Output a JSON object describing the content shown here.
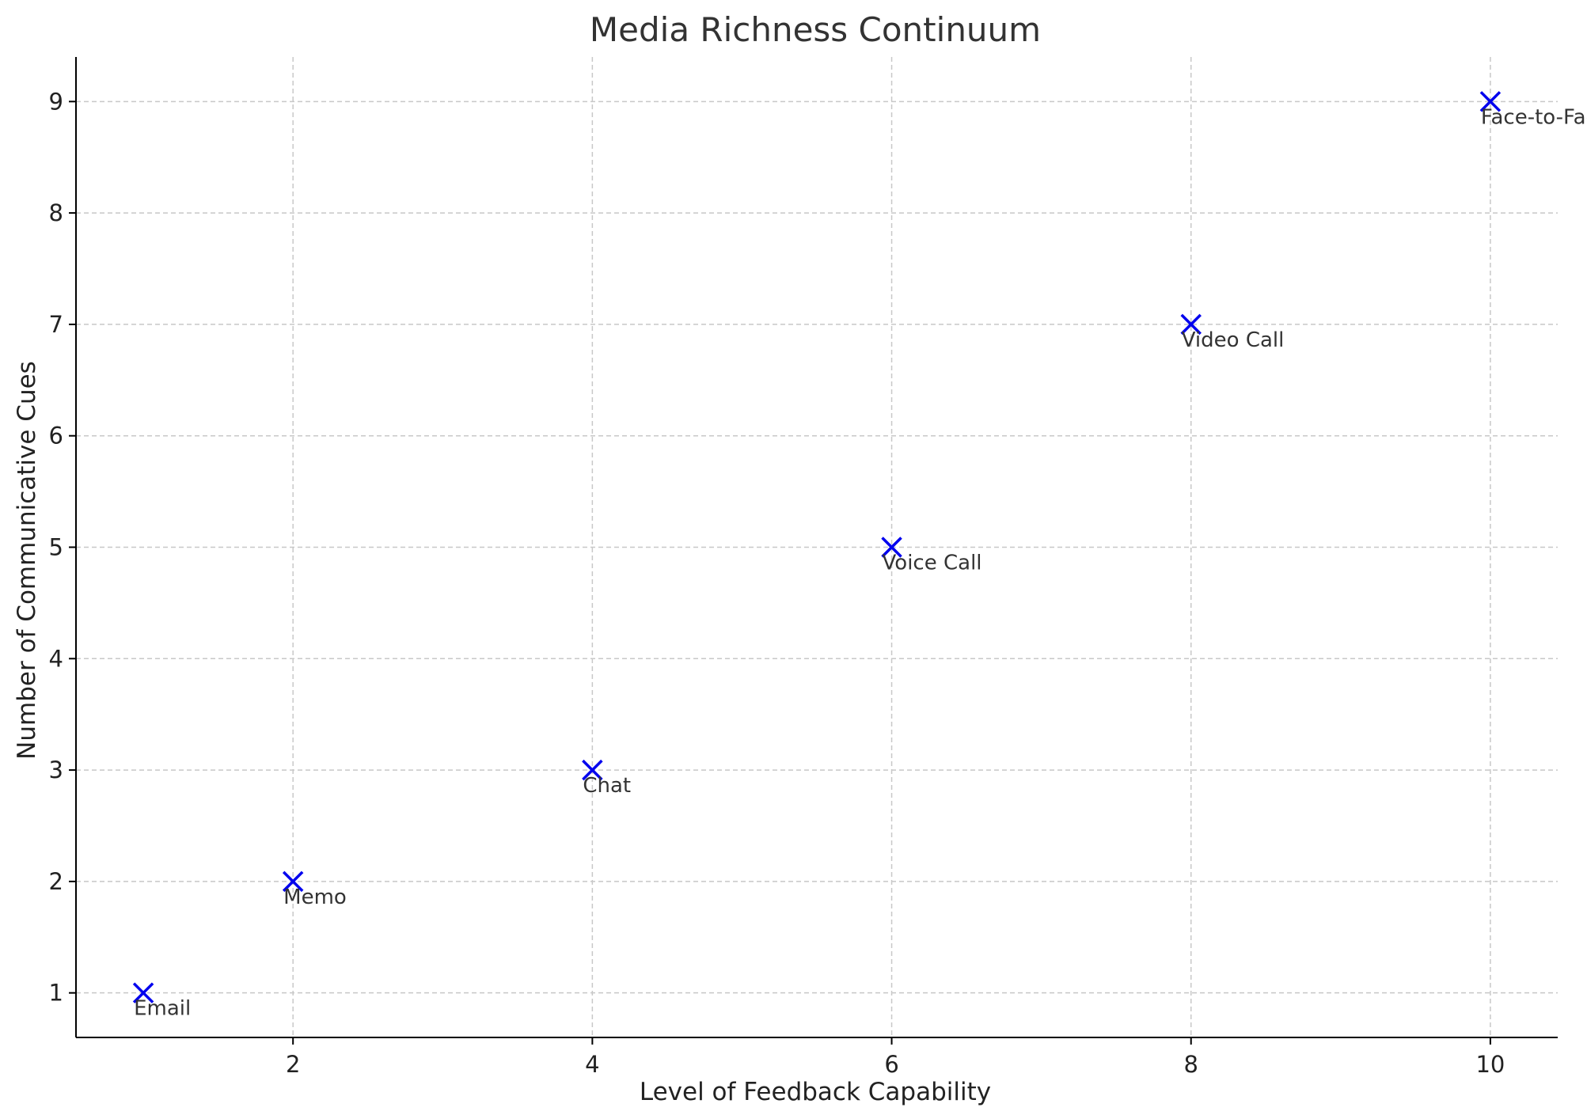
{
  "chart_data": {
    "type": "scatter",
    "title": "Media Richness Continuum",
    "xlabel": "Level of Feedback Capability",
    "ylabel": "Number of Communicative Cues",
    "xlim": [
      0.55,
      10.45
    ],
    "ylim": [
      0.6,
      9.4
    ],
    "xticks": [
      2,
      4,
      6,
      8,
      10
    ],
    "yticks": [
      1,
      2,
      3,
      4,
      5,
      6,
      7,
      8,
      9
    ],
    "grid": true,
    "marker": "x",
    "marker_color": "#0000ee",
    "points": [
      {
        "x": 1,
        "y": 1,
        "label": "Email"
      },
      {
        "x": 2,
        "y": 2,
        "label": "Memo"
      },
      {
        "x": 4,
        "y": 3,
        "label": "Chat"
      },
      {
        "x": 6,
        "y": 5,
        "label": "Voice Call"
      },
      {
        "x": 8,
        "y": 7,
        "label": "Video Call"
      },
      {
        "x": 10,
        "y": 9,
        "label": "Face-to-Face"
      }
    ]
  }
}
